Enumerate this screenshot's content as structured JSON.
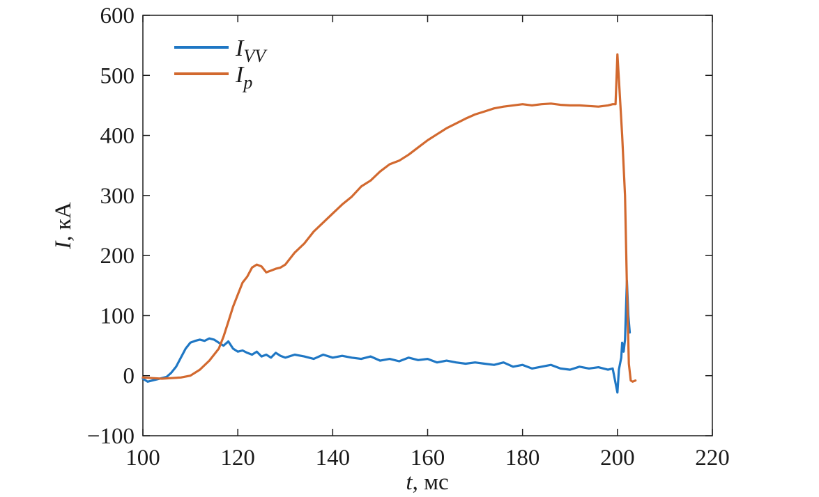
{
  "chart_data": {
    "type": "line",
    "title": "",
    "xlabel_var": "t",
    "xlabel_unit": ", мс",
    "ylabel_var": "I",
    "ylabel_unit": ", кА",
    "xlim": [
      100,
      220
    ],
    "ylim": [
      -100,
      600
    ],
    "xticks": [
      100,
      120,
      140,
      160,
      180,
      200,
      220
    ],
    "yticks": [
      -100,
      0,
      100,
      200,
      300,
      400,
      500,
      600
    ],
    "xtick_labels": [
      "100",
      "120",
      "140",
      "160",
      "180",
      "200",
      "220"
    ],
    "ytick_labels": [
      "−100",
      "0",
      "100",
      "200",
      "300",
      "400",
      "500",
      "600"
    ],
    "grid": false,
    "legend_position": "top-left",
    "series": [
      {
        "name": "I",
        "name_sub": "VV",
        "color": "#1f77c4",
        "points": [
          [
            100,
            -5
          ],
          [
            101,
            -10
          ],
          [
            102,
            -8
          ],
          [
            103,
            -6
          ],
          [
            104,
            -4
          ],
          [
            105,
            -2
          ],
          [
            106,
            5
          ],
          [
            107,
            15
          ],
          [
            108,
            30
          ],
          [
            109,
            45
          ],
          [
            110,
            55
          ],
          [
            111,
            58
          ],
          [
            112,
            60
          ],
          [
            113,
            58
          ],
          [
            114,
            62
          ],
          [
            115,
            60
          ],
          [
            116,
            55
          ],
          [
            117,
            50
          ],
          [
            118,
            57
          ],
          [
            119,
            45
          ],
          [
            120,
            40
          ],
          [
            121,
            42
          ],
          [
            122,
            38
          ],
          [
            123,
            35
          ],
          [
            124,
            40
          ],
          [
            125,
            32
          ],
          [
            126,
            35
          ],
          [
            127,
            30
          ],
          [
            128,
            38
          ],
          [
            129,
            33
          ],
          [
            130,
            30
          ],
          [
            132,
            35
          ],
          [
            134,
            32
          ],
          [
            136,
            28
          ],
          [
            138,
            35
          ],
          [
            140,
            30
          ],
          [
            142,
            33
          ],
          [
            144,
            30
          ],
          [
            146,
            28
          ],
          [
            148,
            32
          ],
          [
            150,
            25
          ],
          [
            152,
            28
          ],
          [
            154,
            24
          ],
          [
            156,
            30
          ],
          [
            158,
            26
          ],
          [
            160,
            28
          ],
          [
            162,
            22
          ],
          [
            164,
            25
          ],
          [
            166,
            22
          ],
          [
            168,
            20
          ],
          [
            170,
            22
          ],
          [
            172,
            20
          ],
          [
            174,
            18
          ],
          [
            176,
            22
          ],
          [
            178,
            15
          ],
          [
            180,
            18
          ],
          [
            182,
            12
          ],
          [
            184,
            15
          ],
          [
            186,
            18
          ],
          [
            188,
            12
          ],
          [
            190,
            10
          ],
          [
            192,
            15
          ],
          [
            194,
            12
          ],
          [
            196,
            14
          ],
          [
            198,
            10
          ],
          [
            199,
            12
          ],
          [
            200,
            -28
          ],
          [
            200.3,
            10
          ],
          [
            200.8,
            30
          ],
          [
            201,
            55
          ],
          [
            201.3,
            40
          ],
          [
            201.6,
            60
          ],
          [
            202,
            158
          ],
          [
            202.3,
            100
          ],
          [
            202.6,
            72
          ]
        ]
      },
      {
        "name": "I",
        "name_sub": "p",
        "color": "#d2692f",
        "points": [
          [
            100,
            -3
          ],
          [
            102,
            -4
          ],
          [
            104,
            -5
          ],
          [
            106,
            -4
          ],
          [
            108,
            -3
          ],
          [
            110,
            0
          ],
          [
            112,
            10
          ],
          [
            114,
            25
          ],
          [
            116,
            45
          ],
          [
            117,
            65
          ],
          [
            118,
            90
          ],
          [
            119,
            115
          ],
          [
            120,
            135
          ],
          [
            121,
            155
          ],
          [
            122,
            165
          ],
          [
            123,
            180
          ],
          [
            124,
            185
          ],
          [
            125,
            182
          ],
          [
            126,
            172
          ],
          [
            127,
            175
          ],
          [
            128,
            178
          ],
          [
            129,
            180
          ],
          [
            130,
            185
          ],
          [
            132,
            205
          ],
          [
            134,
            220
          ],
          [
            136,
            240
          ],
          [
            138,
            255
          ],
          [
            140,
            270
          ],
          [
            142,
            285
          ],
          [
            144,
            298
          ],
          [
            146,
            315
          ],
          [
            148,
            325
          ],
          [
            150,
            340
          ],
          [
            152,
            352
          ],
          [
            154,
            358
          ],
          [
            156,
            368
          ],
          [
            158,
            380
          ],
          [
            160,
            392
          ],
          [
            162,
            402
          ],
          [
            164,
            412
          ],
          [
            166,
            420
          ],
          [
            168,
            428
          ],
          [
            170,
            435
          ],
          [
            172,
            440
          ],
          [
            174,
            445
          ],
          [
            176,
            448
          ],
          [
            178,
            450
          ],
          [
            180,
            452
          ],
          [
            182,
            450
          ],
          [
            184,
            452
          ],
          [
            186,
            453
          ],
          [
            188,
            451
          ],
          [
            190,
            450
          ],
          [
            192,
            450
          ],
          [
            194,
            449
          ],
          [
            196,
            448
          ],
          [
            198,
            450
          ],
          [
            199,
            452
          ],
          [
            199.6,
            452
          ],
          [
            200,
            535
          ],
          [
            200.4,
            480
          ],
          [
            201,
            400
          ],
          [
            201.6,
            300
          ],
          [
            202,
            150
          ],
          [
            202.4,
            20
          ],
          [
            202.8,
            -8
          ],
          [
            203.2,
            -10
          ],
          [
            203.8,
            -8
          ]
        ]
      }
    ]
  }
}
